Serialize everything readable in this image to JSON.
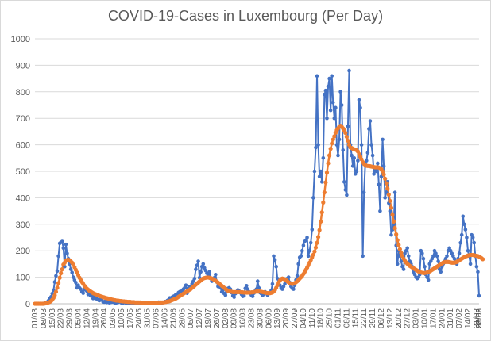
{
  "chart_data": {
    "type": "line",
    "title": "COVID-19-Cases in Luxembourg (Per Day)",
    "xlabel": "",
    "ylabel": "",
    "ylim": [
      0,
      1000
    ],
    "yticks": [
      0,
      100,
      200,
      300,
      400,
      500,
      600,
      700,
      800,
      900,
      1000
    ],
    "grid": true,
    "legend": "none",
    "x_tick_labels": [
      "01/03",
      "08/03",
      "15/03",
      "22/03",
      "29/03",
      "05/04",
      "12/04",
      "19/04",
      "26/04",
      "03/05",
      "10/05",
      "17/05",
      "24/05",
      "31/05",
      "07/06",
      "14/06",
      "21/06",
      "28/06",
      "05/07",
      "12/07",
      "19/07",
      "26/07",
      "02/08",
      "09/08",
      "16/08",
      "23/08",
      "30/08",
      "06/09",
      "13/09",
      "20/09",
      "27/09",
      "04/10",
      "11/10",
      "18/10",
      "25/10",
      "01/11",
      "08/11",
      "15/11",
      "22/11",
      "29/11",
      "06/12",
      "13/12",
      "20/12",
      "27/12",
      "03/01",
      "10/01",
      "17/01",
      "24/01",
      "31/01",
      "07/02",
      "14/02",
      "21/02",
      "28/02",
      "07/03"
    ],
    "colors": {
      "daily": "#4472c4",
      "average": "#ed7d31",
      "grid": "#d9d9d9",
      "text": "#595959"
    },
    "series": [
      {
        "key": "daily",
        "values": [
          0,
          0,
          0,
          0,
          0,
          0,
          0,
          1,
          2,
          5,
          7,
          12,
          20,
          26,
          38,
          51,
          82,
          105,
          123,
          180,
          228,
          232,
          235,
          210,
          140,
          224,
          190,
          170,
          150,
          130,
          118,
          100,
          90,
          80,
          60,
          70,
          60,
          55,
          45,
          40,
          65,
          52,
          48,
          35,
          45,
          30,
          32,
          20,
          25,
          27,
          18,
          15,
          12,
          28,
          15,
          8,
          6,
          10,
          5,
          8,
          4,
          5,
          6,
          7,
          5,
          3,
          4,
          5,
          7,
          9,
          3,
          2,
          6,
          4,
          1,
          3,
          2,
          5,
          3,
          1,
          2,
          2,
          3,
          4,
          2,
          2,
          3,
          5,
          3,
          2,
          3,
          2,
          3,
          2,
          4,
          3,
          3,
          2,
          3,
          4,
          6,
          3,
          2,
          4,
          5,
          8,
          6,
          12,
          15,
          22,
          18,
          25,
          28,
          30,
          35,
          25,
          42,
          45,
          38,
          50,
          55,
          60,
          70,
          40,
          58,
          65,
          62,
          75,
          85,
          95,
          130,
          145,
          160,
          98,
          120,
          140,
          150,
          135,
          125,
          115,
          105,
          120,
          95,
          85,
          92,
          98,
          110,
          82,
          65,
          75,
          60,
          45,
          52,
          38,
          32,
          45,
          58,
          60,
          55,
          42,
          30,
          25,
          38,
          45,
          52,
          48,
          42,
          35,
          28,
          30,
          58,
          68,
          55,
          45,
          38,
          32,
          28,
          40,
          48,
          55,
          85,
          60,
          42,
          38,
          32,
          35,
          45,
          40,
          33,
          38,
          42,
          50,
          75,
          180,
          165,
          140,
          95,
          80,
          70,
          60,
          55,
          65,
          75,
          88,
          95,
          100,
          80,
          65,
          58,
          55,
          70,
          90,
          105,
          150,
          175,
          180,
          200,
          220,
          235,
          240,
          250,
          180,
          200,
          230,
          280,
          400,
          500,
          590,
          860,
          600,
          480,
          500,
          460,
          550,
          790,
          805,
          700,
          820,
          850,
          730,
          860,
          760,
          700,
          740,
          600,
          560,
          620,
          800,
          750,
          580,
          460,
          430,
          410,
          670,
          880,
          600,
          560,
          520,
          550,
          490,
          500,
          540,
          770,
          740,
          600,
          180,
          420,
          530,
          540,
          570,
          660,
          690,
          600,
          560,
          490,
          510,
          500,
          530,
          450,
          350,
          480,
          620,
          520,
          400,
          420,
          460,
          380,
          350,
          260,
          280,
          300,
          420,
          220,
          150,
          200,
          180,
          160,
          140,
          130,
          190,
          200,
          210,
          180,
          160,
          150,
          140,
          120,
          110,
          100,
          95,
          100,
          110,
          200,
          190,
          170,
          140,
          110,
          100,
          90,
          150,
          160,
          170,
          180,
          200,
          190,
          180,
          160,
          130,
          120,
          140,
          150,
          160,
          170,
          180,
          200,
          210,
          200,
          190,
          180,
          170,
          160,
          150,
          170,
          190,
          230,
          260,
          330,
          300,
          280,
          250,
          200,
          180,
          150,
          260,
          250,
          230,
          180,
          140,
          120,
          30
        ]
      },
      {
        "key": "average",
        "values": [
          0,
          0,
          0,
          0,
          0,
          0,
          0,
          0,
          1,
          2,
          3,
          5,
          7,
          10,
          15,
          22,
          32,
          45,
          60,
          78,
          98,
          115,
          130,
          148,
          155,
          162,
          165,
          166,
          164,
          160,
          155,
          148,
          138,
          128,
          118,
          108,
          98,
          90,
          82,
          75,
          68,
          62,
          57,
          53,
          49,
          46,
          43,
          40,
          38,
          36,
          34,
          32,
          30,
          28,
          27,
          25,
          24,
          22,
          21,
          20,
          18,
          17,
          16,
          15,
          14,
          13,
          12,
          12,
          11,
          10,
          10,
          9,
          9,
          8,
          8,
          7,
          7,
          7,
          6,
          6,
          6,
          5,
          5,
          5,
          5,
          5,
          4,
          4,
          4,
          4,
          4,
          4,
          4,
          4,
          4,
          4,
          4,
          4,
          4,
          4,
          4,
          4,
          5,
          5,
          5,
          6,
          7,
          8,
          9,
          10,
          12,
          14,
          16,
          18,
          20,
          23,
          26,
          29,
          32,
          35,
          38,
          41,
          44,
          47,
          50,
          53,
          56,
          60,
          64,
          68,
          72,
          76,
          80,
          84,
          88,
          92,
          95,
          97,
          98,
          99,
          99,
          98,
          97,
          95,
          93,
          90,
          87,
          84,
          80,
          76,
          72,
          68,
          64,
          60,
          56,
          52,
          49,
          47,
          46,
          45,
          44,
          44,
          44,
          44,
          44,
          44,
          44,
          43,
          43,
          42,
          42,
          42,
          42,
          42,
          42,
          43,
          43,
          44,
          45,
          46,
          46,
          46,
          46,
          45,
          44,
          43,
          42,
          41,
          40,
          40,
          40,
          41,
          43,
          46,
          52,
          60,
          70,
          80,
          88,
          93,
          95,
          94,
          92,
          89,
          85,
          81,
          78,
          76,
          75,
          76,
          78,
          81,
          85,
          90,
          95,
          100,
          105,
          112,
          120,
          128,
          136,
          145,
          155,
          165,
          175,
          185,
          197,
          212,
          230,
          252,
          278,
          310,
          345,
          382,
          420,
          458,
          495,
          530,
          560,
          585,
          605,
          620,
          632,
          645,
          655,
          662,
          668,
          672,
          668,
          662,
          655,
          645,
          630,
          615,
          600,
          590,
          588,
          585,
          583,
          582,
          580,
          575,
          565,
          555,
          545,
          535,
          528,
          524,
          521,
          520,
          520,
          519,
          518,
          517,
          516,
          515,
          515,
          515,
          514,
          512,
          508,
          500,
          488,
          472,
          455,
          435,
          412,
          388,
          362,
          336,
          310,
          285,
          262,
          240,
          222,
          206,
          192,
          180,
          170,
          162,
          156,
          151,
          147,
          143,
          140,
          137,
          134,
          131,
          128,
          125,
          122,
          120,
          118,
          117,
          116,
          116,
          117,
          118,
          120,
          122,
          125,
          128,
          131,
          134,
          137,
          140,
          143,
          146,
          149,
          152,
          155,
          157,
          158,
          158,
          158,
          157,
          156,
          155,
          155,
          155,
          156,
          158,
          161,
          164,
          167,
          170,
          173,
          176,
          178,
          180,
          182,
          183,
          184,
          184,
          184,
          183,
          182,
          181,
          180,
          178,
          175,
          172,
          168
        ]
      }
    ]
  }
}
